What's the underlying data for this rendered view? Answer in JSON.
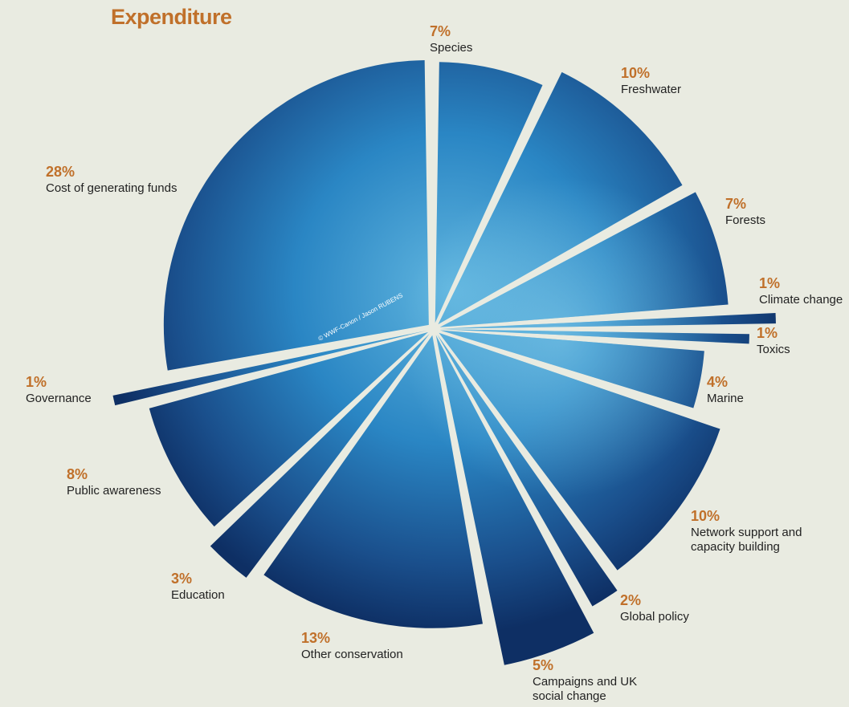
{
  "chart_data": {
    "type": "pie",
    "title": "Expenditure",
    "photo_credit": "© WWF-Canon / Jason RUBENS",
    "categories": [
      "Species",
      "Freshwater",
      "Forests",
      "Climate change",
      "Toxics",
      "Marine",
      "Network support and capacity building",
      "Global policy",
      "Campaigns and UK social change",
      "Other conservation",
      "Education",
      "Public awareness",
      "Governance",
      "Cost of generating funds"
    ],
    "values": [
      7,
      10,
      7,
      1,
      1,
      4,
      10,
      2,
      5,
      13,
      3,
      8,
      1,
      28
    ],
    "value_labels": [
      "7%",
      "10%",
      "7%",
      "1%",
      "1%",
      "4%",
      "10%",
      "2%",
      "5%",
      "13%",
      "3%",
      "8%",
      "1%",
      "28%"
    ],
    "color": "#2a86c4",
    "label_color": "#c0702a"
  }
}
